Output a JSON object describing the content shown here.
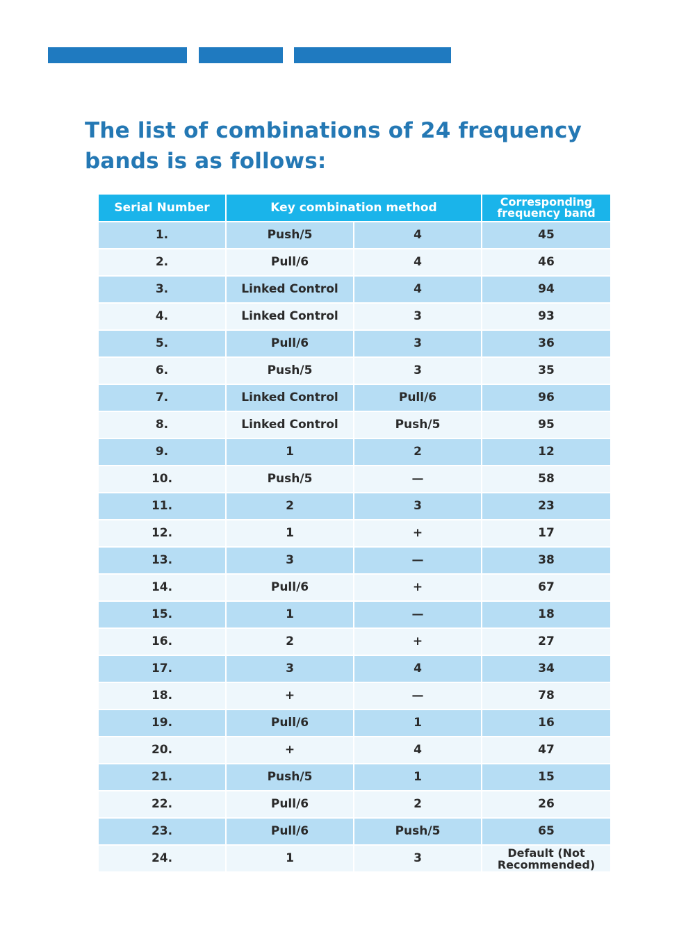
{
  "header_bars": {
    "color": "#1f7ac0"
  },
  "title": "The list of combinations of 24 frequency bands is as follows:",
  "table": {
    "header_color": "#1ab4ea",
    "row_color_odd": "#b6ddf4",
    "row_color_even": "#eef7fc",
    "headers": {
      "serial": "Serial Number",
      "key": "Key combination method",
      "band": "Corresponding frequency band"
    },
    "rows": [
      [
        "1.",
        "Push/5",
        "4",
        "45"
      ],
      [
        "2.",
        "Pull/6",
        "4",
        "46"
      ],
      [
        "3.",
        "Linked Control",
        "4",
        "94"
      ],
      [
        "4.",
        "Linked Control",
        "3",
        "93"
      ],
      [
        "5.",
        "Pull/6",
        "3",
        "36"
      ],
      [
        "6.",
        "Push/5",
        "3",
        "35"
      ],
      [
        "7.",
        "Linked Control",
        "Pull/6",
        "96"
      ],
      [
        "8.",
        "Linked Control",
        "Push/5",
        "95"
      ],
      [
        "9.",
        "1",
        "2",
        "12"
      ],
      [
        "10.",
        "Push/5",
        "—",
        "58"
      ],
      [
        "11.",
        "2",
        "3",
        "23"
      ],
      [
        "12.",
        "1",
        "+",
        "17"
      ],
      [
        "13.",
        "3",
        "—",
        "38"
      ],
      [
        "14.",
        "Pull/6",
        "+",
        "67"
      ],
      [
        "15.",
        "1",
        "—",
        "18"
      ],
      [
        "16.",
        "2",
        "+",
        "27"
      ],
      [
        "17.",
        "3",
        "4",
        "34"
      ],
      [
        "18.",
        "+",
        "—",
        "78"
      ],
      [
        "19.",
        "Pull/6",
        "1",
        "16"
      ],
      [
        "20.",
        "+",
        "4",
        "47"
      ],
      [
        "21.",
        "Push/5",
        "1",
        "15"
      ],
      [
        "22.",
        "Pull/6",
        "2",
        "26"
      ],
      [
        "23.",
        "Pull/6",
        "Push/5",
        "65"
      ],
      [
        "24.",
        "1",
        "3",
        "Default (Not Recommended)"
      ]
    ]
  }
}
